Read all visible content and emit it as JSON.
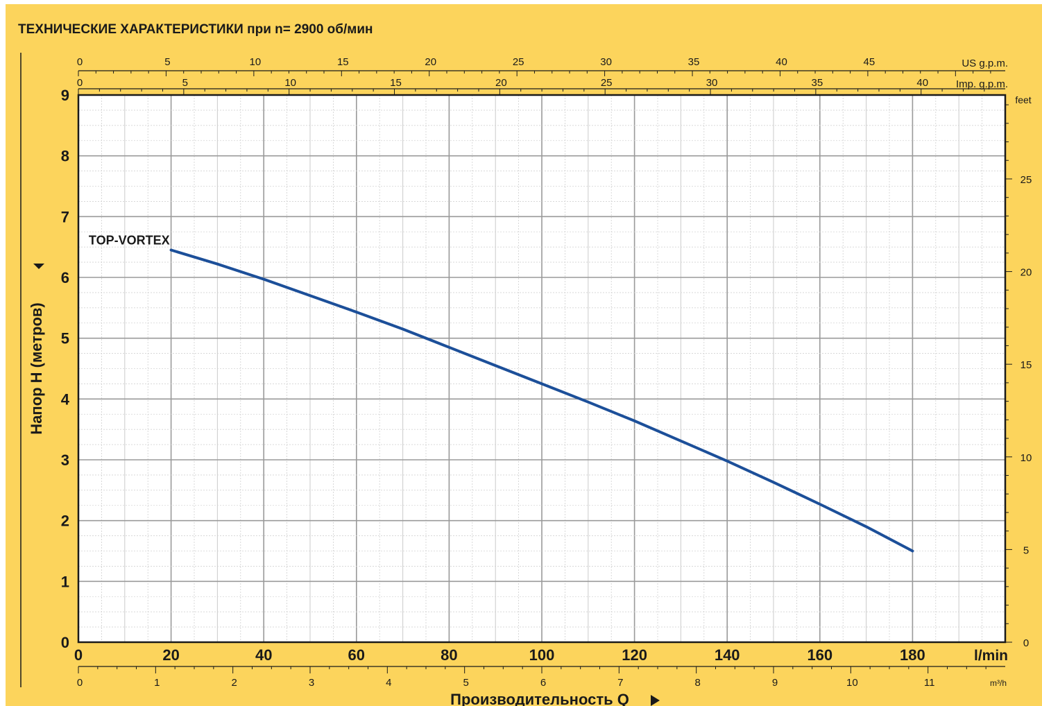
{
  "chart_data": {
    "type": "line",
    "title": "ТЕХНИЧЕСКИЕ ХАРАКТЕРИСТИКИ при n= 2900 об/мин",
    "ylabel": "Напор H  (метров)",
    "xlabel": "Производительность Q",
    "ylim": [
      0,
      9
    ],
    "xlim": [
      0,
      200
    ],
    "grid": true,
    "y_ticks": [
      "0",
      "1",
      "2",
      "3",
      "4",
      "5",
      "6",
      "7",
      "8",
      "9"
    ],
    "x_ticks": [
      "0",
      "20",
      "40",
      "60",
      "80",
      "100",
      "120",
      "140",
      "160",
      "180"
    ],
    "x_unit": "l/min",
    "y2_unit": "feet",
    "y2_ticks": [
      "0",
      "5",
      "10",
      "15",
      "20",
      "25"
    ],
    "x_top_us": {
      "unit": "US g.p.m.",
      "ticks": [
        "0",
        "5",
        "10",
        "15",
        "20",
        "25",
        "30",
        "35",
        "40",
        "45"
      ]
    },
    "x_top_imp": {
      "unit": "Imp. g.p.m.",
      "ticks": [
        "0",
        "5",
        "10",
        "15",
        "20",
        "25",
        "30",
        "35",
        "40"
      ]
    },
    "x_bottom_m3h": {
      "unit": "m³/h",
      "ticks": [
        "0",
        "1",
        "2",
        "3",
        "4",
        "5",
        "6",
        "7",
        "8",
        "9",
        "10",
        "11"
      ]
    },
    "series": [
      {
        "name": "TOP-VORTEX",
        "color": "#1c4f99",
        "x": [
          20,
          30,
          40,
          50,
          60,
          70,
          80,
          90,
          100,
          110,
          120,
          130,
          140,
          150,
          160,
          170,
          180
        ],
        "y": [
          6.45,
          6.22,
          5.97,
          5.7,
          5.43,
          5.15,
          4.85,
          4.55,
          4.25,
          3.95,
          3.64,
          3.31,
          2.98,
          2.63,
          2.27,
          1.9,
          1.5
        ]
      }
    ]
  }
}
